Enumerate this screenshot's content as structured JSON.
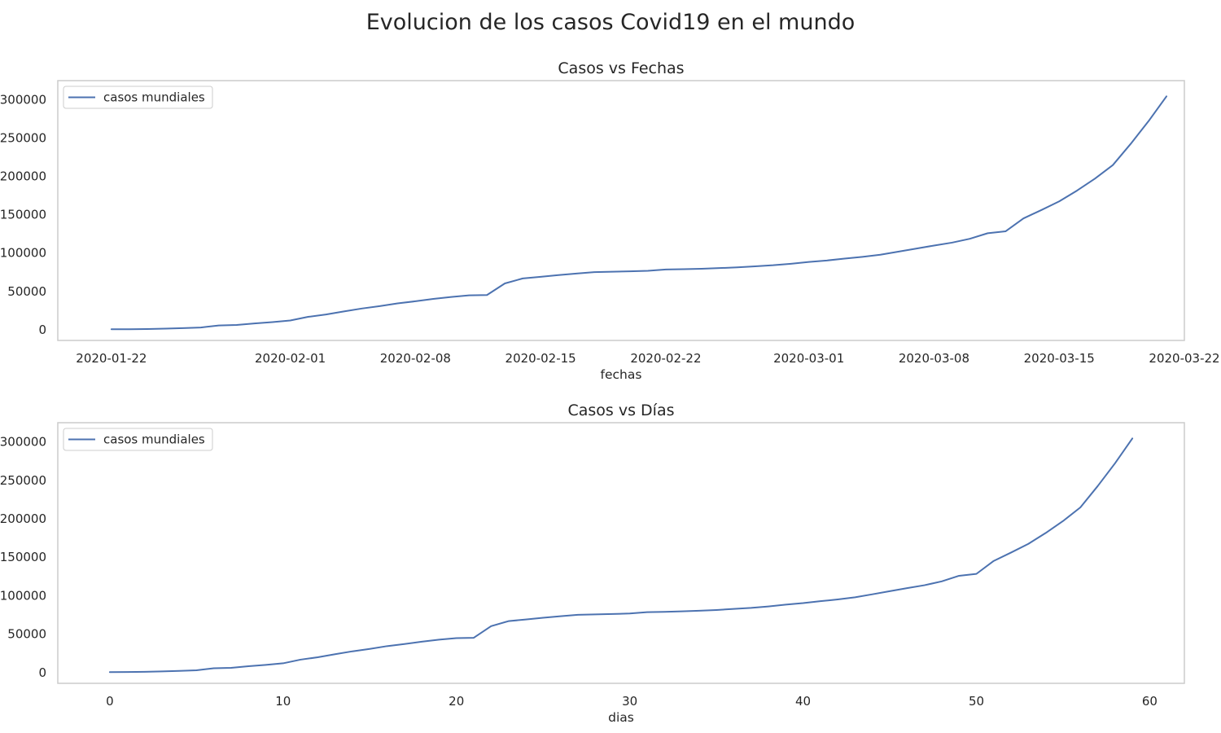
{
  "figure_title": "Evolucion de los casos Covid19 en el mundo",
  "colors": {
    "line": "#4c72b0",
    "frame": "#cccccc",
    "text": "#262626"
  },
  "chart_data": [
    {
      "type": "line",
      "title": "Casos vs Fechas",
      "xlabel": "fechas",
      "ylabel": "",
      "x_type": "date",
      "xlim": [
        "2020-01-19",
        "2020-03-22"
      ],
      "ylim": [
        -14000,
        325000
      ],
      "x_ticks": [
        "2020-01-22",
        "2020-02-01",
        "2020-02-08",
        "2020-02-15",
        "2020-02-22",
        "2020-03-01",
        "2020-03-08",
        "2020-03-15",
        "2020-03-22"
      ],
      "y_ticks": [
        0,
        50000,
        100000,
        150000,
        200000,
        250000,
        300000
      ],
      "grid": false,
      "legend_position": "top-left",
      "series": [
        {
          "name": "casos mundiales",
          "x": [
            "2020-01-22",
            "2020-01-23",
            "2020-01-24",
            "2020-01-25",
            "2020-01-26",
            "2020-01-27",
            "2020-01-28",
            "2020-01-29",
            "2020-01-30",
            "2020-01-31",
            "2020-02-01",
            "2020-02-02",
            "2020-02-03",
            "2020-02-04",
            "2020-02-05",
            "2020-02-06",
            "2020-02-07",
            "2020-02-08",
            "2020-02-09",
            "2020-02-10",
            "2020-02-11",
            "2020-02-12",
            "2020-02-13",
            "2020-02-14",
            "2020-02-15",
            "2020-02-16",
            "2020-02-17",
            "2020-02-18",
            "2020-02-19",
            "2020-02-20",
            "2020-02-21",
            "2020-02-22",
            "2020-02-23",
            "2020-02-24",
            "2020-02-25",
            "2020-02-26",
            "2020-02-27",
            "2020-02-28",
            "2020-02-29",
            "2020-03-01",
            "2020-03-02",
            "2020-03-03",
            "2020-03-04",
            "2020-03-05",
            "2020-03-06",
            "2020-03-07",
            "2020-03-08",
            "2020-03-09",
            "2020-03-10",
            "2020-03-11",
            "2020-03-12",
            "2020-03-13",
            "2020-03-14",
            "2020-03-15",
            "2020-03-16",
            "2020-03-17",
            "2020-03-18",
            "2020-03-19",
            "2020-03-20",
            "2020-03-21"
          ],
          "values": [
            555,
            654,
            941,
            1434,
            2118,
            2927,
            5578,
            6166,
            8234,
            9927,
            12038,
            16787,
            19881,
            23892,
            27635,
            30794,
            34391,
            37120,
            40150,
            42762,
            44802,
            45221,
            60368,
            66885,
            69030,
            71224,
            73258,
            75136,
            75639,
            76197,
            76819,
            78572,
            78958,
            79561,
            80406,
            81388,
            82746,
            84112,
            86011,
            88369,
            90306,
            92840,
            95120,
            97886,
            101801,
            105847,
            109821,
            113590,
            118620,
            125875,
            128352,
            145205,
            156101,
            167454,
            181574,
            197102,
            214821,
            242570,
            272208,
            304507
          ]
        }
      ]
    },
    {
      "type": "line",
      "title": "Casos vs Días",
      "xlabel": "dias",
      "ylabel": "",
      "xlim": [
        -3,
        62
      ],
      "ylim": [
        -14000,
        325000
      ],
      "x_ticks": [
        0,
        10,
        20,
        30,
        40,
        50,
        60
      ],
      "y_ticks": [
        0,
        50000,
        100000,
        150000,
        200000,
        250000,
        300000
      ],
      "grid": false,
      "legend_position": "top-left",
      "series": [
        {
          "name": "casos mundiales",
          "x": [
            0,
            1,
            2,
            3,
            4,
            5,
            6,
            7,
            8,
            9,
            10,
            11,
            12,
            13,
            14,
            15,
            16,
            17,
            18,
            19,
            20,
            21,
            22,
            23,
            24,
            25,
            26,
            27,
            28,
            29,
            30,
            31,
            32,
            33,
            34,
            35,
            36,
            37,
            38,
            39,
            40,
            41,
            42,
            43,
            44,
            45,
            46,
            47,
            48,
            49,
            50,
            51,
            52,
            53,
            54,
            55,
            56,
            57,
            58,
            59
          ],
          "values": [
            555,
            654,
            941,
            1434,
            2118,
            2927,
            5578,
            6166,
            8234,
            9927,
            12038,
            16787,
            19881,
            23892,
            27635,
            30794,
            34391,
            37120,
            40150,
            42762,
            44802,
            45221,
            60368,
            66885,
            69030,
            71224,
            73258,
            75136,
            75639,
            76197,
            76819,
            78572,
            78958,
            79561,
            80406,
            81388,
            82746,
            84112,
            86011,
            88369,
            90306,
            92840,
            95120,
            97886,
            101801,
            105847,
            109821,
            113590,
            118620,
            125875,
            128352,
            145205,
            156101,
            167454,
            181574,
            197102,
            214821,
            242570,
            272208,
            304507
          ]
        }
      ]
    }
  ]
}
